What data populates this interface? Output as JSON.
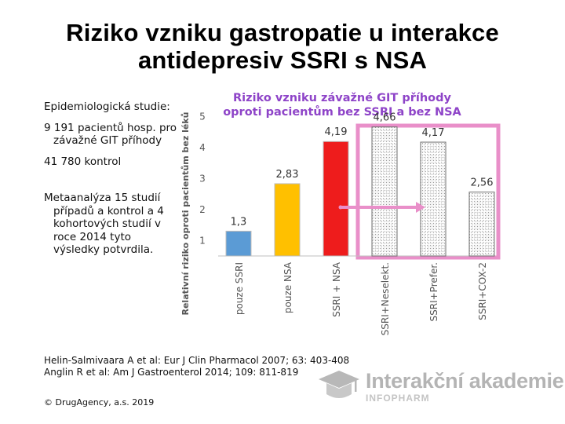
{
  "title_line1": "Riziko vzniku gastropatie u interakce",
  "title_line2": "antidepresiv SSRI s NSA",
  "left_text": {
    "p1": "Epidemiologická studie:",
    "p2": "9 191 pacientů hosp. pro závažné GIT příhody",
    "p3": "41 780 kontrol",
    "p4": "Metaanalýza 15 studií případů a kontrol a 4 kohortových studií v roce 2014 tyto výsledky potvrdila."
  },
  "chart_data": {
    "type": "bar",
    "title_line1": "Riziko vzniku závažné GIT příhody",
    "title_line2": "oproti pacientům bez SSRI a bez NSA",
    "ylabel": "Relativní riziko oproti pacientům bez léků",
    "ylim": [
      0.5,
      5.5
    ],
    "yticks": [
      "1",
      "2",
      "3",
      "4",
      "5"
    ],
    "categories": [
      "pouze SSRI",
      "pouze NSA",
      "SSRI + NSA",
      "SSRI+Neselekt.",
      "SSRI+Prefer.",
      "SSRI+COX-2"
    ],
    "values": [
      1.3,
      2.83,
      4.19,
      4.66,
      4.17,
      2.56
    ],
    "value_labels": [
      "1,3",
      "2,83",
      "4,19",
      "4,66",
      "4,17",
      "2,56"
    ],
    "colors": [
      "#5b9bd5",
      "#ffc000",
      "#ee1c1c",
      "pattern",
      "pattern",
      "pattern"
    ],
    "highlight_color": "#e98fc9"
  },
  "references": {
    "ref1": "Helin-Salmivaara A et al: Eur J Clin Pharmacol 2007; 63: 403-408",
    "ref2": "Anglin R et al: Am J Gastroenterol 2014; 109: 811-819"
  },
  "copyright": "© DrugAgency, a.s. 2019",
  "logo": {
    "main": "Interakční akademie",
    "sub": "INFOPHARM"
  }
}
